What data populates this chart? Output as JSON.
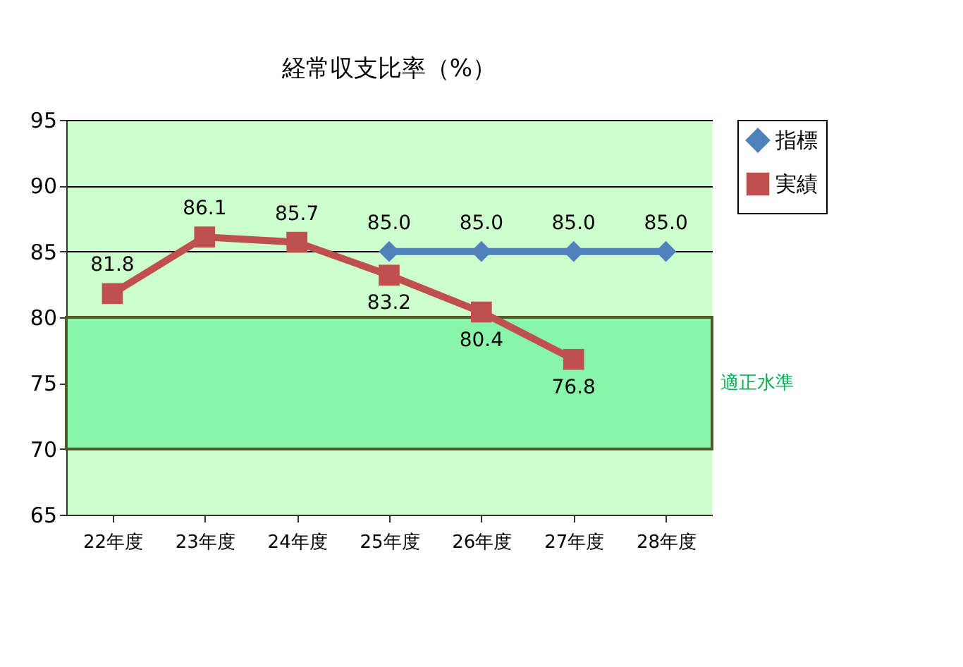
{
  "chart_data": {
    "type": "line",
    "title": "経常収支比率（%）",
    "categories": [
      "22年度",
      "23年度",
      "24年度",
      "25年度",
      "26年度",
      "27年度",
      "28年度"
    ],
    "series": [
      {
        "name": "指標",
        "color": "#4f81bd",
        "marker": "diamond",
        "values": [
          null,
          null,
          null,
          85.0,
          85.0,
          85.0,
          85.0
        ],
        "value_labels": [
          null,
          null,
          null,
          "85.0",
          "85.0",
          "85.0",
          "85.0"
        ]
      },
      {
        "name": "実績",
        "color": "#c0504d",
        "marker": "square",
        "values": [
          81.8,
          86.1,
          85.7,
          83.2,
          80.4,
          76.8,
          null
        ],
        "value_labels": [
          "81.8",
          "86.1",
          "85.7",
          "83.2",
          "80.4",
          "76.8",
          null
        ]
      }
    ],
    "ylim": [
      65,
      95
    ],
    "yticks": [
      65,
      70,
      75,
      80,
      85,
      90,
      95
    ],
    "grid": "y",
    "legend": "right",
    "data_labels": true,
    "bands": [
      {
        "axis": "y",
        "from": 70,
        "to": 80,
        "label": "適正水準",
        "color": "#88f5a8"
      }
    ]
  }
}
